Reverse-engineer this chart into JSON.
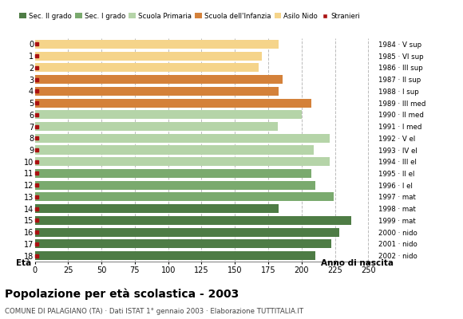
{
  "title": "Popolazione per età scolastica - 2003",
  "subtitle": "COMUNE DI PALAGIANO (TA) · Dati ISTAT 1° gennaio 2003 · Elaborazione TUTTITALIA.IT",
  "ages": [
    0,
    1,
    2,
    3,
    4,
    5,
    6,
    7,
    8,
    9,
    10,
    11,
    12,
    13,
    14,
    15,
    16,
    17,
    18
  ],
  "years": [
    "2002 · nido",
    "2001 · nido",
    "2000 · nido",
    "1999 · mat",
    "1998 · mat",
    "1997 · mat",
    "1996 · I el",
    "1995 · II el",
    "1994 · III el",
    "1993 · IV el",
    "1992 · V el",
    "1991 · I med",
    "1990 · II med",
    "1989 · III med",
    "1988 · I sup",
    "1987 · II sup",
    "1986 · III sup",
    "1985 · VI sup",
    "1984 · V sup"
  ],
  "values": [
    183,
    170,
    168,
    186,
    183,
    207,
    200,
    182,
    221,
    209,
    221,
    207,
    210,
    224,
    183,
    237,
    228,
    222,
    210
  ],
  "bar_colors": [
    "#f5d48a",
    "#f5d48a",
    "#f5d48a",
    "#d4813a",
    "#d4813a",
    "#d4813a",
    "#b5d4a8",
    "#b5d4a8",
    "#b5d4a8",
    "#b5d4a8",
    "#b5d4a8",
    "#7aaa6e",
    "#7aaa6e",
    "#7aaa6e",
    "#4e7c45",
    "#4e7c45",
    "#4e7c45",
    "#4e7c45",
    "#4e7c45"
  ],
  "stranieri_color": "#aa1111",
  "background_color": "#ffffff",
  "grid_color": "#bbbbbb",
  "xlim": [
    0,
    255
  ],
  "xticks": [
    0,
    25,
    50,
    75,
    100,
    125,
    150,
    175,
    200,
    225,
    250
  ],
  "legend_labels": [
    "Sec. II grado",
    "Sec. I grado",
    "Scuola Primaria",
    "Scuola dell'Infanzia",
    "Asilo Nido",
    "Stranieri"
  ],
  "legend_colors": [
    "#4e7c45",
    "#7aaa6e",
    "#b5d4a8",
    "#d4813a",
    "#f5d48a",
    "#aa1111"
  ]
}
